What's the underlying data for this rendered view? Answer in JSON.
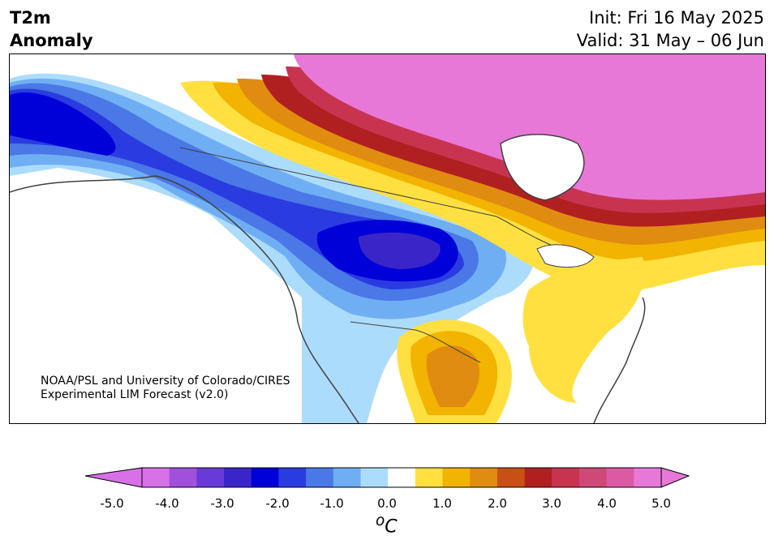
{
  "header": {
    "title_line1": "T2m",
    "title_line2": "Anomaly",
    "init": "Init: Fri 16 May 2025",
    "valid": "Valid: 31 May – 06 Jun"
  },
  "map": {
    "credit_line1": "NOAA/PSL and University of Colorado/CIRES",
    "credit_line2": "Experimental LIM Forecast (v2.0)"
  },
  "colorbar": {
    "unit_super": "o",
    "unit_main": "C",
    "tick_labels": [
      "-5.0",
      "-4.0",
      "-3.0",
      "-2.0",
      "-1.0",
      "0.0",
      "1.0",
      "2.0",
      "3.0",
      "4.0",
      "5.0"
    ],
    "levels": [
      "-5.0",
      "-4.5",
      "-4.0",
      "-3.5",
      "-3.0",
      "-2.5",
      "-2.0",
      "-1.5",
      "-1.0",
      "-0.5",
      "0.5",
      "1.0",
      "1.5",
      "2.0",
      "2.5",
      "3.0",
      "3.5",
      "4.0",
      "4.5",
      "5.0"
    ],
    "colors": [
      "#d870e8",
      "#a050dc",
      "#6a3ad8",
      "#3a26c8",
      "#0000d8",
      "#2a3ce0",
      "#4a78e6",
      "#70aef4",
      "#acdcfc",
      "#ffffff",
      "#ffe040",
      "#f2b400",
      "#e08c10",
      "#c85014",
      "#b02020",
      "#c83450",
      "#d04878",
      "#dc5aa4",
      "#e878d8"
    ],
    "under_color": "#d870e8",
    "over_color": "#e878d8"
  }
}
